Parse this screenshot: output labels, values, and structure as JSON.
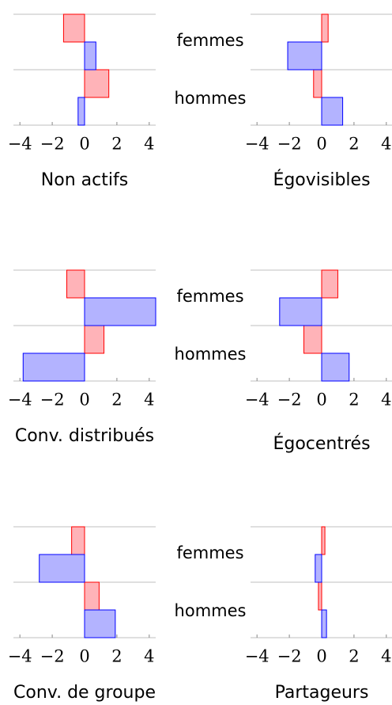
{
  "chart_data": [
    {
      "type": "hbar",
      "title": "Non actifs",
      "categories": [
        "femmes",
        "hommes"
      ],
      "series": [
        {
          "color": "#ff0000",
          "values": [
            -1.3,
            1.5
          ]
        },
        {
          "color": "#0000ff",
          "values": [
            0.7,
            -0.4
          ]
        }
      ],
      "xlim": [
        -4.4,
        4.4
      ],
      "xticks": [
        {
          "value": -4,
          "label": "−4"
        },
        {
          "value": -2,
          "label": "−2"
        },
        0,
        2,
        4
      ]
    },
    {
      "type": "hbar",
      "title": "Égovisibles",
      "series": [
        {
          "color": "#ff0000",
          "values": [
            0.4,
            -0.5
          ]
        },
        {
          "color": "#0000ff",
          "values": [
            -2.1,
            1.3
          ]
        }
      ],
      "xlim": [
        -4.4,
        4.4
      ],
      "xticks": [
        {
          "value": -4,
          "label": "−4"
        },
        {
          "value": -2,
          "label": "−2"
        },
        0,
        2,
        4
      ]
    },
    {
      "type": "hbar",
      "title": "Conv. distribués",
      "categories": [
        "femmes",
        "hommes"
      ],
      "series": [
        {
          "color": "#ff0000",
          "values": [
            -1.1,
            1.2
          ]
        },
        {
          "color": "#0000ff",
          "values": [
            4.4,
            -3.8
          ]
        }
      ],
      "xlim": [
        -4.4,
        4.4
      ],
      "xticks": [
        {
          "value": -4,
          "label": "−4"
        },
        {
          "value": -2,
          "label": "−2"
        },
        0,
        2,
        4
      ]
    },
    {
      "type": "hbar",
      "title": "Égocentrés",
      "series": [
        {
          "color": "#ff0000",
          "values": [
            1.0,
            -1.1
          ]
        },
        {
          "color": "#0000ff",
          "values": [
            -2.6,
            1.7
          ]
        }
      ],
      "xlim": [
        -4.4,
        4.4
      ],
      "xticks": [
        {
          "value": -4,
          "label": "−4"
        },
        {
          "value": -2,
          "label": "−2"
        },
        0,
        2,
        4
      ]
    },
    {
      "type": "hbar",
      "title": "Conv. de groupe",
      "categories": [
        "femmes",
        "hommes"
      ],
      "series": [
        {
          "color": "#ff0000",
          "values": [
            -0.8,
            0.9
          ]
        },
        {
          "color": "#0000ff",
          "values": [
            -2.8,
            1.9
          ]
        }
      ],
      "xlim": [
        -4.4,
        4.4
      ],
      "xticks": [
        {
          "value": -4,
          "label": "−4"
        },
        {
          "value": -2,
          "label": "−2"
        },
        0,
        2,
        4
      ]
    },
    {
      "type": "hbar",
      "title": "Partageurs",
      "series": [
        {
          "color": "#ff0000",
          "values": [
            0.2,
            -0.2
          ]
        },
        {
          "color": "#0000ff",
          "values": [
            -0.4,
            0.3
          ]
        }
      ],
      "xlim": [
        -4.4,
        4.4
      ],
      "xticks": [
        {
          "value": -4,
          "label": "−4"
        },
        {
          "value": -2,
          "label": "−2"
        },
        0,
        2,
        4
      ]
    }
  ]
}
